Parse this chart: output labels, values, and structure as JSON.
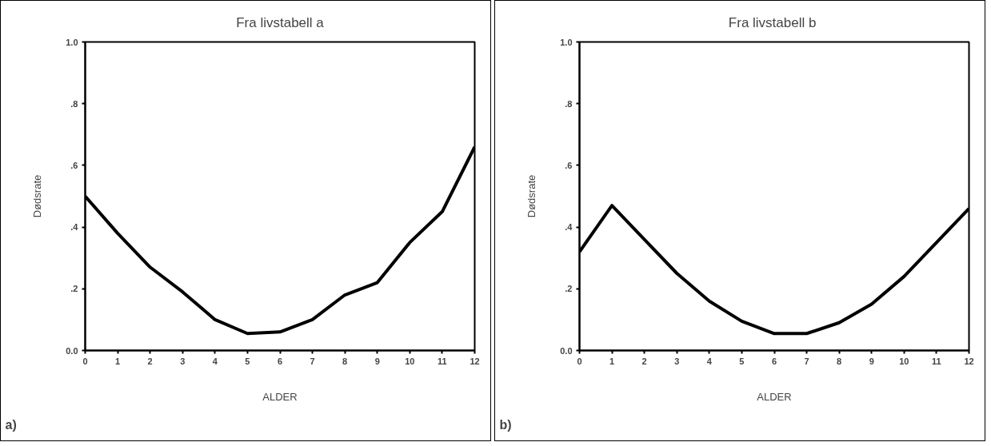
{
  "chart_data": [
    {
      "type": "line",
      "title": "Fra livstabell a",
      "xlabel": "ALDER",
      "ylabel": "Dødsrate",
      "annotations": [
        "a)"
      ],
      "x": [
        0,
        1,
        2,
        3,
        4,
        5,
        6,
        7,
        8,
        9,
        10,
        11,
        12
      ],
      "series": [
        {
          "color": "#000000",
          "values": [
            0.5,
            0.38,
            0.27,
            0.19,
            0.1,
            0.055,
            0.06,
            0.1,
            0.18,
            0.22,
            0.35,
            0.45,
            0.66
          ]
        }
      ],
      "xlim": [
        0,
        12
      ],
      "xticks": [
        0,
        1,
        2,
        3,
        4,
        5,
        6,
        7,
        8,
        9,
        10,
        11,
        12
      ],
      "ylim": [
        0,
        1
      ],
      "yticks": [
        {
          "value": 0,
          "label": "0.0"
        },
        {
          "value": 0.2,
          "label": ".2"
        },
        {
          "value": 0.4,
          "label": ".4"
        },
        {
          "value": 0.6,
          "label": ".6"
        },
        {
          "value": 0.8,
          "label": ".8"
        },
        {
          "value": 1,
          "label": "1.0"
        }
      ],
      "grid": false,
      "marker": "none",
      "line_style": "solid"
    },
    {
      "type": "line",
      "title": "Fra livstabell  b",
      "xlabel": "ALDER",
      "ylabel": "Dødsrate",
      "annotations": [
        "b)"
      ],
      "x": [
        0,
        1,
        2,
        3,
        4,
        5,
        6,
        7,
        8,
        9,
        10,
        11,
        12
      ],
      "series": [
        {
          "color": "#000000",
          "values": [
            0.32,
            0.47,
            0.36,
            0.25,
            0.16,
            0.095,
            0.055,
            0.055,
            0.09,
            0.15,
            0.24,
            0.35,
            0.46
          ]
        }
      ],
      "xlim": [
        0,
        12
      ],
      "xticks": [
        0,
        1,
        2,
        3,
        4,
        5,
        6,
        7,
        8,
        9,
        10,
        11,
        12
      ],
      "ylim": [
        0,
        1
      ],
      "yticks": [
        {
          "value": 0,
          "label": "0.0"
        },
        {
          "value": 0.2,
          "label": ".2"
        },
        {
          "value": 0.4,
          "label": ".4"
        },
        {
          "value": 0.6,
          "label": ".6"
        },
        {
          "value": 0.8,
          "label": ".8"
        },
        {
          "value": 1,
          "label": "1.0"
        }
      ],
      "grid": false,
      "marker": "none",
      "line_style": "solid"
    }
  ]
}
